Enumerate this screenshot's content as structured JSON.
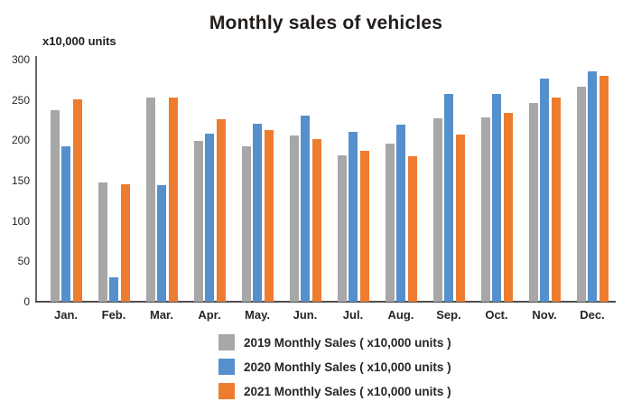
{
  "title": "Monthly sales of vehicles",
  "unit_label": "x10,000 units",
  "colors": {
    "series_2019": "#a7a7a7",
    "series_2020": "#5590cc",
    "series_2021": "#ee7c2f",
    "axis": "#4d4d4d",
    "text": "#262626",
    "title_text": "#221d1a",
    "background": "#ffffff"
  },
  "chart_data": {
    "type": "bar",
    "title": "Monthly sales of vehicles",
    "xlabel": "",
    "ylabel": "x10,000 units",
    "ylim": [
      0,
      300
    ],
    "yticks": [
      0,
      50,
      100,
      150,
      200,
      250,
      300
    ],
    "grid": false,
    "legend_position": "bottom",
    "categories": [
      "Jan.",
      "Feb.",
      "Mar.",
      "Apr.",
      "May.",
      "Jun.",
      "Jul.",
      "Aug.",
      "Sep.",
      "Oct.",
      "Nov.",
      "Dec."
    ],
    "series": [
      {
        "name": "2019 Monthly Sales ( x10,000 units )",
        "color": "#a7a7a7",
        "values": [
          237,
          148,
          253,
          199,
          192,
          206,
          181,
          196,
          227,
          228,
          246,
          266
        ]
      },
      {
        "name": "2020 Monthly Sales ( x10,000 units )",
        "color": "#5590cc",
        "values": [
          193,
          30,
          144,
          208,
          220,
          231,
          211,
          219,
          257,
          258,
          277,
          285
        ]
      },
      {
        "name": "2021 Monthly Sales ( x10,000 units )",
        "color": "#ee7c2f",
        "values": [
          251,
          146,
          253,
          226,
          213,
          202,
          187,
          180,
          207,
          234,
          253,
          280
        ]
      }
    ]
  }
}
